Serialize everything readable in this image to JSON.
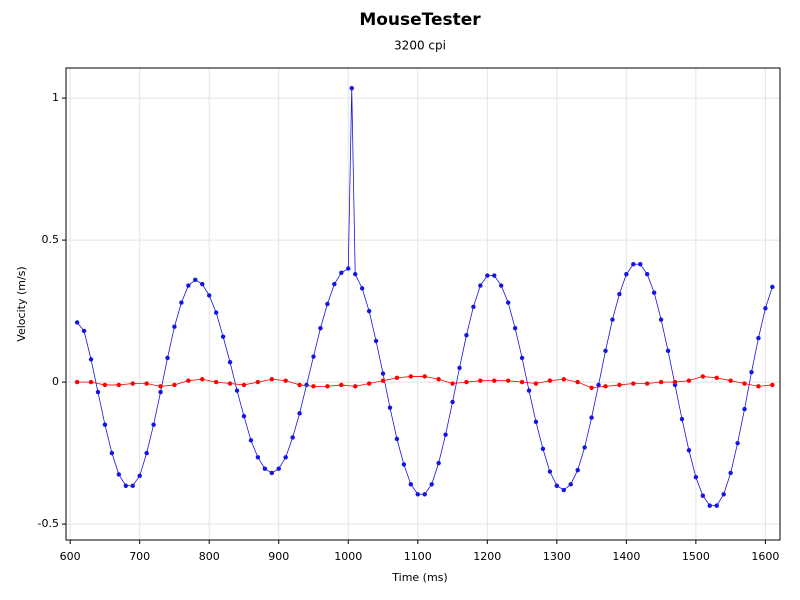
{
  "chart_data": {
    "type": "scatter",
    "title": "MouseTester",
    "subtitle": "3200 cpi",
    "x_label": "Time (ms)",
    "y_label": "Velocity (m/s)",
    "xlim": [
      594,
      1621
    ],
    "xticks": [
      600,
      700,
      800,
      900,
      1000,
      1100,
      1200,
      1300,
      1400,
      1500,
      1600
    ],
    "ylim": [
      -0.556,
      1.106
    ],
    "yticks": [
      -0.5,
      0,
      0.5,
      1
    ],
    "grid": true,
    "lines": true,
    "series": [
      {
        "color": "#1414e6",
        "x": [
          610,
          620,
          630,
          640,
          650,
          660,
          670,
          680,
          690,
          700,
          710,
          720,
          730,
          740,
          750,
          760,
          770,
          780,
          790,
          800,
          810,
          820,
          830,
          840,
          850,
          860,
          870,
          880,
          890,
          900,
          910,
          920,
          930,
          940,
          950,
          960,
          970,
          980,
          990,
          1000,
          1005,
          1010,
          1020,
          1030,
          1040,
          1050,
          1060,
          1070,
          1080,
          1090,
          1100,
          1110,
          1120,
          1130,
          1140,
          1150,
          1160,
          1170,
          1180,
          1190,
          1200,
          1210,
          1220,
          1230,
          1240,
          1250,
          1260,
          1270,
          1280,
          1290,
          1300,
          1310,
          1320,
          1330,
          1340,
          1350,
          1360,
          1370,
          1380,
          1390,
          1400,
          1410,
          1420,
          1430,
          1440,
          1450,
          1460,
          1470,
          1480,
          1490,
          1500,
          1510,
          1520,
          1530,
          1540,
          1550,
          1560,
          1570,
          1580,
          1590,
          1600,
          1610
        ],
        "values": [
          0.21,
          0.18,
          0.08,
          -0.035,
          -0.15,
          -0.25,
          -0.325,
          -0.365,
          -0.365,
          -0.33,
          -0.25,
          -0.15,
          -0.035,
          0.085,
          0.195,
          0.28,
          0.34,
          0.36,
          0.345,
          0.305,
          0.245,
          0.16,
          0.07,
          -0.03,
          -0.12,
          -0.205,
          -0.265,
          -0.305,
          -0.32,
          -0.305,
          -0.265,
          -0.195,
          -0.11,
          -0.01,
          0.09,
          0.19,
          0.275,
          0.345,
          0.385,
          0.4,
          1.035,
          0.38,
          0.33,
          0.25,
          0.145,
          0.03,
          -0.09,
          -0.2,
          -0.29,
          -0.36,
          -0.395,
          -0.395,
          -0.36,
          -0.285,
          -0.185,
          -0.07,
          0.05,
          0.165,
          0.265,
          0.34,
          0.375,
          0.375,
          0.34,
          0.28,
          0.19,
          0.085,
          -0.03,
          -0.14,
          -0.235,
          -0.315,
          -0.365,
          -0.38,
          -0.36,
          -0.31,
          -0.23,
          -0.125,
          -0.01,
          0.11,
          0.22,
          0.31,
          0.38,
          0.415,
          0.415,
          0.38,
          0.315,
          0.22,
          0.11,
          -0.01,
          -0.13,
          -0.24,
          -0.335,
          -0.4,
          -0.435,
          -0.435,
          -0.395,
          -0.32,
          -0.215,
          -0.095,
          0.035,
          0.155,
          0.26,
          0.335
        ]
      },
      {
        "color": "#ff0000",
        "x": [
          610,
          630,
          650,
          670,
          690,
          710,
          730,
          750,
          770,
          790,
          810,
          830,
          850,
          870,
          890,
          910,
          930,
          950,
          970,
          990,
          1010,
          1030,
          1050,
          1070,
          1090,
          1110,
          1130,
          1150,
          1170,
          1190,
          1210,
          1230,
          1250,
          1270,
          1290,
          1310,
          1330,
          1350,
          1370,
          1390,
          1410,
          1430,
          1450,
          1470,
          1490,
          1510,
          1530,
          1550,
          1570,
          1590,
          1610
        ],
        "values": [
          0,
          0,
          -0.01,
          -0.01,
          -0.005,
          -0.005,
          -0.015,
          -0.01,
          0.005,
          0.01,
          0,
          -0.005,
          -0.01,
          0,
          0.01,
          0.005,
          -0.01,
          -0.015,
          -0.015,
          -0.01,
          -0.015,
          -0.005,
          0.005,
          0.015,
          0.02,
          0.02,
          0.01,
          -0.005,
          0,
          0.005,
          0.005,
          0.005,
          0,
          -0.005,
          0.005,
          0.01,
          0,
          -0.02,
          -0.015,
          -0.01,
          -0.005,
          -0.005,
          0,
          0,
          0.005,
          0.02,
          0.015,
          0.005,
          -0.005,
          -0.015,
          -0.01
        ]
      }
    ]
  }
}
